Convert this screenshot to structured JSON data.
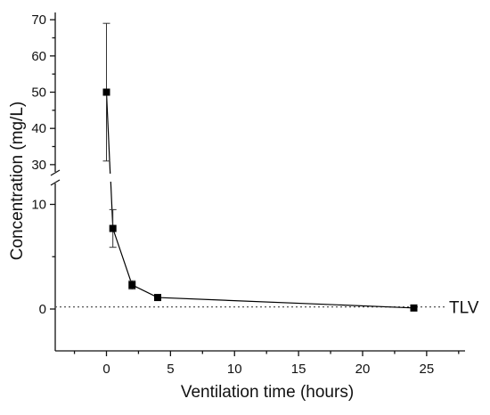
{
  "chart_data": {
    "type": "line",
    "xlabel": "Ventilation time (hours)",
    "ylabel": "Concentration (mg/L)",
    "x_ticks": [
      "0",
      "5",
      "10",
      "15",
      "20",
      "25"
    ],
    "y_ticks_lower": [
      "0",
      "10"
    ],
    "y_ticks_upper": [
      "30",
      "40",
      "50",
      "60",
      "70"
    ],
    "xlim": [
      -4,
      28
    ],
    "ylim_lower": [
      -4,
      12
    ],
    "ylim_upper": [
      28,
      72
    ],
    "axis_break": "y between 10 and 30",
    "series": [
      {
        "x": [
          0,
          0.5,
          2,
          4,
          24
        ],
        "y": [
          50,
          7.7,
          2.3,
          1.1,
          0.1
        ],
        "error": [
          19,
          1.8,
          0.4,
          0.2,
          0.05
        ],
        "marker": "square",
        "color": "#000000"
      }
    ],
    "reference_line": {
      "label": "TLV",
      "y": 0.2,
      "style": "dotted",
      "color": "#555555"
    },
    "grid": false,
    "legend": "none"
  }
}
